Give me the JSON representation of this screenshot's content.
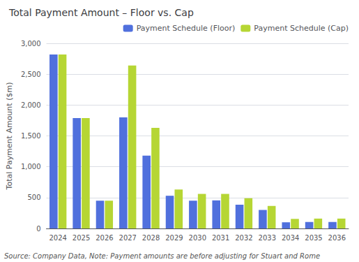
{
  "chart_data": {
    "type": "bar",
    "title": "Total Payment Amount – Floor vs. Cap",
    "ylabel": "Total Payment Amount ($m)",
    "annotations": [
      "Source: Company Data, Note: Payment amounts are before adjusting for Stuart and Rome"
    ],
    "categories": [
      "2024",
      "2025",
      "2026",
      "2027",
      "2028",
      "2029",
      "2030",
      "2031",
      "2032",
      "2033",
      "2034",
      "2035",
      "2036"
    ],
    "series": [
      {
        "name": "Payment Schedule (Floor)",
        "values": [
          2820,
          1790,
          450,
          1800,
          1180,
          530,
          450,
          455,
          385,
          300,
          100,
          105,
          105
        ]
      },
      {
        "name": "Payment Schedule (Cap)",
        "values": [
          2820,
          1790,
          450,
          2640,
          1630,
          630,
          560,
          560,
          490,
          365,
          155,
          160,
          160
        ]
      }
    ],
    "ylim": [
      0,
      3000
    ],
    "yticks": [
      0,
      500,
      {
        "value": 1000,
        "label": "1,000"
      },
      {
        "value": 1500,
        "label": "1,500"
      },
      {
        "value": 2000,
        "label": "2,000"
      },
      {
        "value": 2500,
        "label": "2,500"
      },
      {
        "value": 3000,
        "label": "3,000"
      }
    ],
    "grid": true,
    "legend": "upper right"
  }
}
